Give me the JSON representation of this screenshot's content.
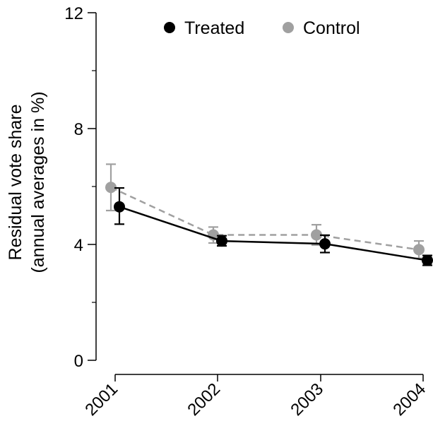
{
  "chart_data": {
    "type": "line",
    "title": "",
    "ylabel_line1": "Residual vote share",
    "ylabel_line2": "(annual averages in %)",
    "xlabel": "",
    "categories": [
      "2001",
      "2002",
      "2003",
      "2004"
    ],
    "ylim": [
      0,
      12
    ],
    "yticks_major": [
      0,
      4,
      8,
      12
    ],
    "yticks_minor": [
      2,
      6,
      10
    ],
    "grid": false,
    "legend_position": "top",
    "series": [
      {
        "name": "Treated",
        "color": "#000000",
        "line_style": "solid",
        "values": [
          5.3,
          4.12,
          4.02,
          3.45
        ],
        "ci_low": [
          4.7,
          3.95,
          3.72,
          3.28
        ],
        "ci_high": [
          5.95,
          4.3,
          4.32,
          3.62
        ]
      },
      {
        "name": "Control",
        "color": "#a0a0a0",
        "line_style": "dashed",
        "values": [
          5.97,
          4.33,
          4.33,
          3.82
        ],
        "ci_low": [
          5.17,
          4.05,
          3.98,
          3.52
        ],
        "ci_high": [
          6.77,
          4.6,
          4.68,
          4.12
        ]
      }
    ]
  }
}
